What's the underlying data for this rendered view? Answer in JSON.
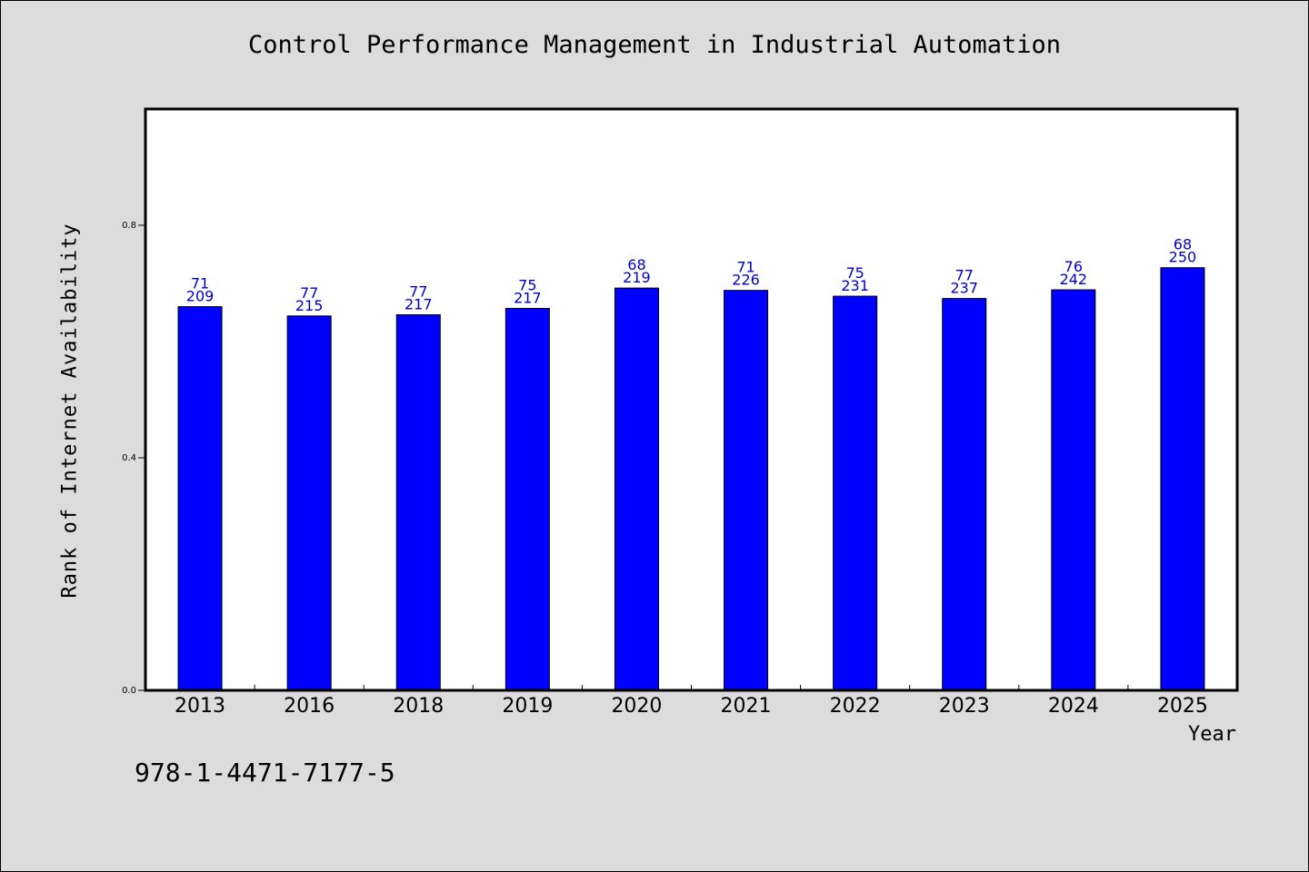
{
  "page": {
    "title": "Control Performance Management in Industrial Automation",
    "isbn": "978-1-4471-7177-5"
  },
  "colors": {
    "background": "#dcdcdc",
    "plot_area": "#ffffff",
    "bar": "#0000ff",
    "data_label": "#0000cc"
  },
  "chart_data": {
    "type": "bar",
    "title": "Control Performance Management in Industrial Automation",
    "xlabel": "Year",
    "ylabel": "Rank of Internet Availability",
    "ylim": [
      0,
      1.0
    ],
    "yticks": [
      0.0,
      0.4,
      0.8
    ],
    "ytick_labels": [
      "0.0",
      "0.4",
      "0.8"
    ],
    "grid": false,
    "categories": [
      "2013",
      "2016",
      "2018",
      "2019",
      "2020",
      "2021",
      "2022",
      "2023",
      "2024",
      "2025"
    ],
    "values": [
      0.66,
      0.644,
      0.646,
      0.657,
      0.692,
      0.688,
      0.678,
      0.674,
      0.689,
      0.727
    ],
    "bar_labels_top": [
      "71",
      "77",
      "77",
      "75",
      "68",
      "71",
      "75",
      "77",
      "76",
      "68"
    ],
    "bar_labels_bottom": [
      "209",
      "215",
      "217",
      "217",
      "219",
      "226",
      "231",
      "237",
      "242",
      "250"
    ]
  }
}
